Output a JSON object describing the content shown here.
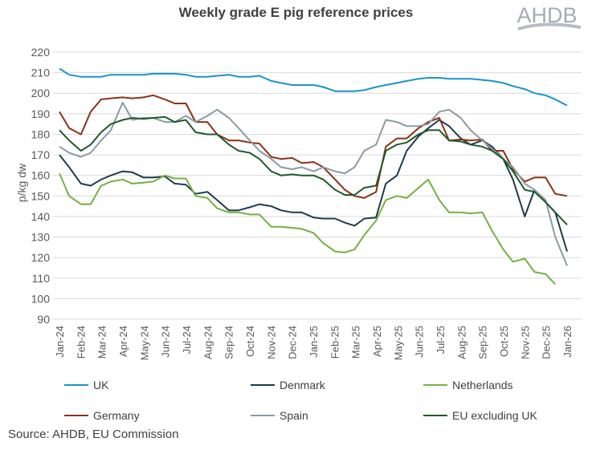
{
  "chart_data": {
    "type": "line",
    "title": "Weekly grade E pig reference prices",
    "ylabel": "p/kg dw",
    "xlabel": "",
    "ylim": [
      90,
      220
    ],
    "yticks": [
      90,
      100,
      110,
      120,
      130,
      140,
      150,
      160,
      170,
      180,
      190,
      200,
      210,
      220
    ],
    "grid": true,
    "legend_position": "bottom",
    "xtick_labels": [
      "Jan-24",
      "Feb-24",
      "Mar-24",
      "Apr-24",
      "May-24",
      "Jun-24",
      "Jul-24",
      "Aug-24",
      "Sep-24",
      "Oct-24",
      "Nov-24",
      "Dec-24",
      "Jan-25",
      "Feb-25",
      "Mar-25",
      "Apr-25",
      "May-25",
      "Jun-25",
      "Jul-25",
      "Aug-25",
      "Sep-25",
      "Oct-25",
      "Nov-25",
      "Dec-25",
      "Jan-26"
    ],
    "x": [
      "2024-01-01",
      "2024-01-15",
      "2024-02-01",
      "2024-02-15",
      "2024-03-01",
      "2024-03-15",
      "2024-04-01",
      "2024-04-15",
      "2024-05-01",
      "2024-05-15",
      "2024-06-01",
      "2024-06-15",
      "2024-07-01",
      "2024-07-15",
      "2024-08-01",
      "2024-08-15",
      "2024-09-01",
      "2024-09-15",
      "2024-10-01",
      "2024-10-15",
      "2024-11-01",
      "2024-11-15",
      "2024-12-01",
      "2024-12-15",
      "2025-01-01",
      "2025-01-15",
      "2025-02-01",
      "2025-02-15",
      "2025-03-01",
      "2025-03-15",
      "2025-04-01",
      "2025-04-15",
      "2025-05-01",
      "2025-05-15",
      "2025-06-01",
      "2025-06-15",
      "2025-07-01",
      "2025-07-15",
      "2025-08-01",
      "2025-08-15",
      "2025-09-01",
      "2025-09-15",
      "2025-10-01",
      "2025-10-15",
      "2025-11-01",
      "2025-11-15",
      "2025-12-01",
      "2025-12-15",
      "2026-01-01"
    ],
    "series": [
      {
        "name": "UK",
        "color": "#1b93c9",
        "values": [
          212,
          209,
          208,
          208,
          208,
          209,
          209,
          209,
          209,
          209.5,
          209.5,
          209.5,
          209,
          208,
          208,
          208.5,
          209,
          208,
          208,
          208.5,
          206,
          205,
          204,
          204,
          204,
          203,
          201,
          201,
          201,
          201.5,
          203,
          204,
          205,
          206,
          207,
          207.5,
          207.5,
          207,
          207,
          207,
          206.5,
          206,
          205,
          203.5,
          202,
          200,
          199,
          197,
          194
        ]
      },
      {
        "name": "Denmark",
        "color": "#1c3c4e",
        "values": [
          170,
          164,
          156,
          155,
          158,
          160,
          162,
          161.5,
          159,
          159,
          159.5,
          156,
          155.5,
          151,
          152,
          148,
          143,
          143,
          144.5,
          146,
          145,
          143,
          142,
          142,
          139.5,
          139,
          139,
          137,
          135.5,
          139,
          139.5,
          156,
          160,
          172,
          179,
          183,
          187,
          184,
          178,
          175,
          177,
          174,
          168,
          158,
          140,
          153,
          147,
          142,
          123
        ]
      },
      {
        "name": "Netherlands",
        "color": "#74b043",
        "values": [
          161,
          150,
          146,
          146,
          155,
          157,
          158,
          156,
          156.5,
          157,
          160,
          158.5,
          158.5,
          150,
          149,
          144,
          142,
          142,
          141,
          141,
          135,
          135,
          134.5,
          134,
          132,
          127,
          123,
          122.5,
          124,
          131,
          138,
          148,
          150,
          149,
          154,
          158,
          148,
          142,
          142,
          141.5,
          142,
          133,
          124,
          118,
          119.5,
          113,
          112,
          107,
          null
        ]
      },
      {
        "name": "Germany",
        "color": "#8b3214",
        "values": [
          191,
          183,
          180,
          191,
          197,
          197.5,
          198,
          197.5,
          198,
          199,
          197,
          195,
          195,
          186,
          186,
          180,
          177,
          177,
          176,
          175.5,
          169,
          168,
          168.5,
          166,
          166.5,
          164,
          158,
          153,
          150,
          149,
          152,
          174,
          178,
          178,
          183,
          186,
          188,
          177,
          177.5,
          177,
          177.5,
          172,
          172,
          163,
          157,
          159,
          159,
          151,
          150
        ]
      },
      {
        "name": "Spain",
        "color": "#8a9ba6",
        "values": [
          174,
          171,
          169,
          171,
          177,
          182,
          195.5,
          187,
          188,
          188,
          186,
          186,
          189,
          186,
          189,
          192,
          188,
          183,
          177,
          172,
          168,
          164,
          163,
          164,
          162,
          164,
          162,
          161,
          164,
          172,
          175,
          187,
          186,
          184,
          184,
          185,
          191,
          192,
          188,
          182,
          177,
          173,
          168,
          164,
          156,
          153,
          148,
          130,
          116
        ]
      },
      {
        "name": "EU excluding UK",
        "color": "#1f5a2b",
        "values": [
          182,
          177,
          172,
          175,
          181,
          185,
          187,
          188,
          187.5,
          188,
          188.5,
          186,
          187,
          181,
          180,
          180,
          175,
          172,
          171,
          168,
          162,
          160,
          160.5,
          160,
          160,
          158,
          153,
          150.5,
          150.5,
          154,
          155,
          172,
          175,
          176,
          180,
          182,
          182,
          177,
          176.5,
          175,
          174,
          172,
          168,
          162,
          153,
          152,
          147,
          142,
          136
        ]
      }
    ]
  },
  "source": "Source: AHDB, EU Commission",
  "logo": {
    "text": "AHDB",
    "color": "#a5acb3"
  }
}
